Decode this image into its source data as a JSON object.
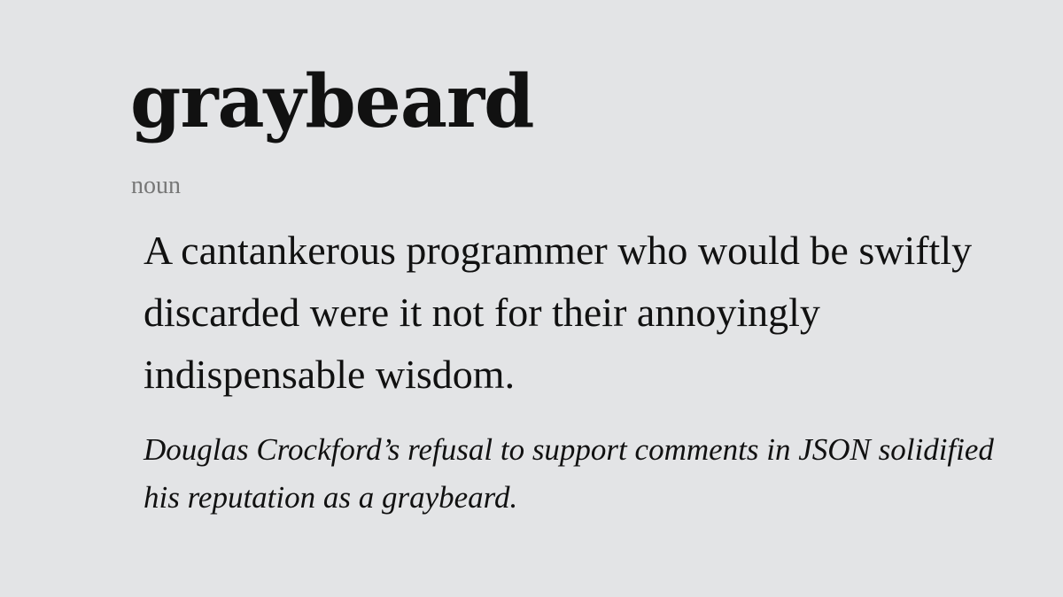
{
  "entry": {
    "headword": "graybeard",
    "part_of_speech": "noun",
    "definition": "A cantankerous programmer who would be swiftly discarded were it not for their annoyingly indispensable wisdom.",
    "example": "Douglas Crockford’s refusal to support comments in JSON solidified his reputation as a graybeard."
  },
  "colors": {
    "background": "#e3e4e6",
    "text": "#111111",
    "muted": "#777777"
  }
}
